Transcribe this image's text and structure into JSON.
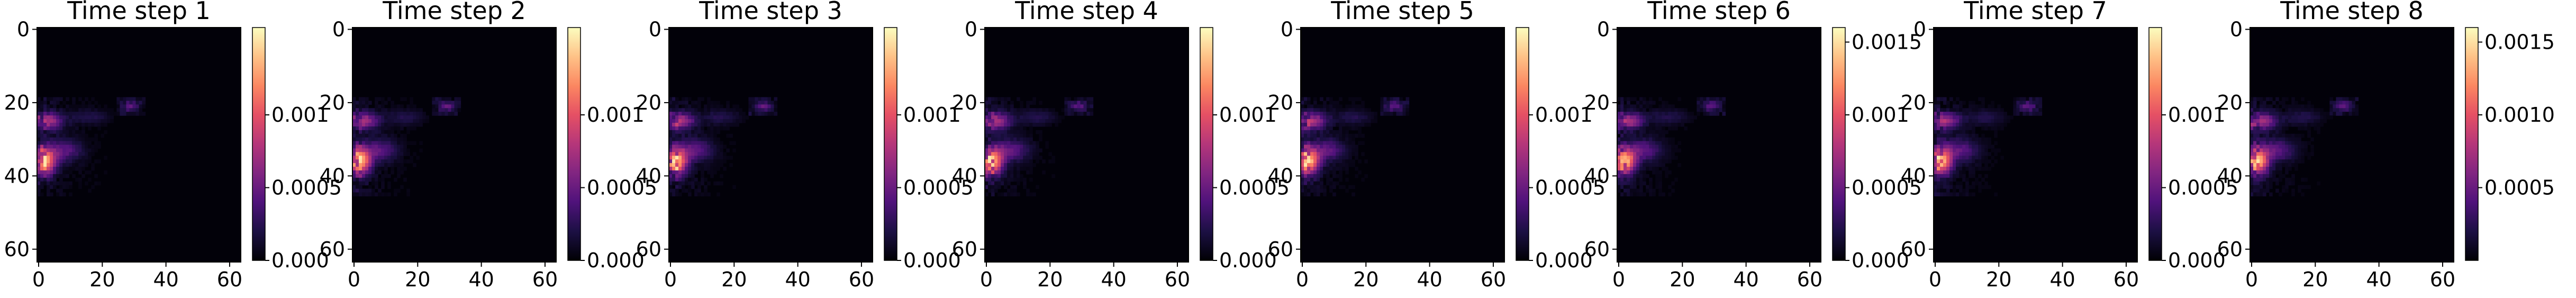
{
  "chart_data": [
    {
      "type": "heatmap",
      "title": "Time step 1",
      "cbar_ticks": [
        "0.000",
        "0.0005",
        "0.001"
      ]
    },
    {
      "type": "heatmap",
      "title": "Time step 2",
      "cbar_ticks": [
        "0.000",
        "0.0005",
        "0.001"
      ]
    },
    {
      "type": "heatmap",
      "title": "Time step 3",
      "cbar_ticks": [
        "0.000",
        "0.0005",
        "0.001"
      ]
    },
    {
      "type": "heatmap",
      "title": "Time step 4",
      "cbar_ticks": [
        "0.000",
        "0.0005",
        "0.001"
      ]
    },
    {
      "type": "heatmap",
      "title": "Time step 5",
      "cbar_ticks": [
        "0.000",
        "0.0005",
        "0.001"
      ]
    },
    {
      "type": "heatmap",
      "title": "Time step 6",
      "cbar_ticks": [
        "0.000",
        "0.0005",
        "0.001",
        "0.0015"
      ]
    },
    {
      "type": "heatmap",
      "title": "Time step 7",
      "cbar_ticks": [
        "0.000",
        "0.0005",
        "0.001"
      ]
    },
    {
      "type": "heatmap",
      "title": "Time step 8",
      "cbar_ticks": [
        "0.0005",
        "0.0010",
        "0.0015"
      ]
    }
  ],
  "shared": {
    "x_ticks": [
      "0",
      "20",
      "40",
      "60"
    ],
    "y_ticks": [
      "0",
      "20",
      "40",
      "60"
    ],
    "x_tick_values": [
      0,
      20,
      40,
      60
    ],
    "y_tick_values": [
      0,
      20,
      40,
      60
    ],
    "grid_size": 64,
    "colormap": "magma",
    "color_range": [
      0,
      0.0016
    ]
  }
}
